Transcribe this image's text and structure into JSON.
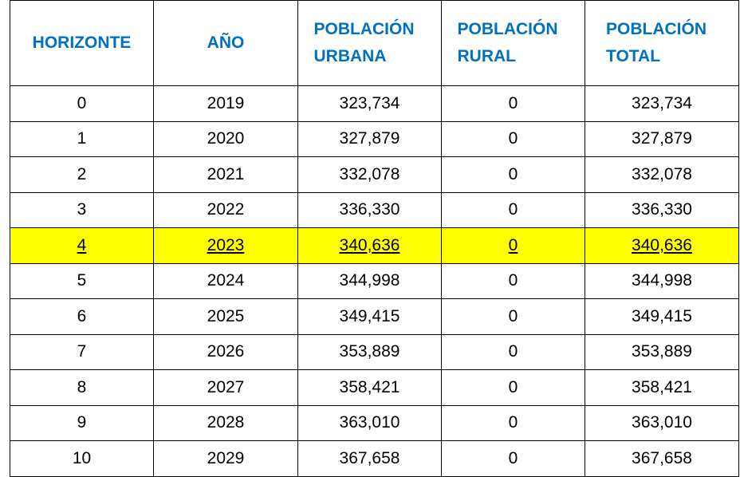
{
  "table": {
    "header": [
      "HORIZONTE",
      "AÑO",
      "POBLACIÓN URBANA",
      "POBLACIÓN RURAL",
      "POBLACIÓN TOTAL"
    ],
    "rows": [
      [
        "0",
        "2019",
        "323,734",
        "0",
        "323,734"
      ],
      [
        "1",
        "2020",
        "327,879",
        "0",
        "327,879"
      ],
      [
        "2",
        "2021",
        "332,078",
        "0",
        "332,078"
      ],
      [
        "3",
        "2022",
        "336,330",
        "0",
        "336,330"
      ],
      [
        "4",
        "2023",
        "340,636",
        "0",
        "340,636"
      ],
      [
        "5",
        "2024",
        "344,998",
        "0",
        "344,998"
      ],
      [
        "6",
        "2025",
        "349,415",
        "0",
        "349,415"
      ],
      [
        "7",
        "2026",
        "353,889",
        "0",
        "353,889"
      ],
      [
        "8",
        "2027",
        "358,421",
        "0",
        "358,421"
      ],
      [
        "9",
        "2028",
        "363,010",
        "0",
        "363,010"
      ],
      [
        "10",
        "2029",
        "367,658",
        "0",
        "367,658"
      ]
    ]
  }
}
